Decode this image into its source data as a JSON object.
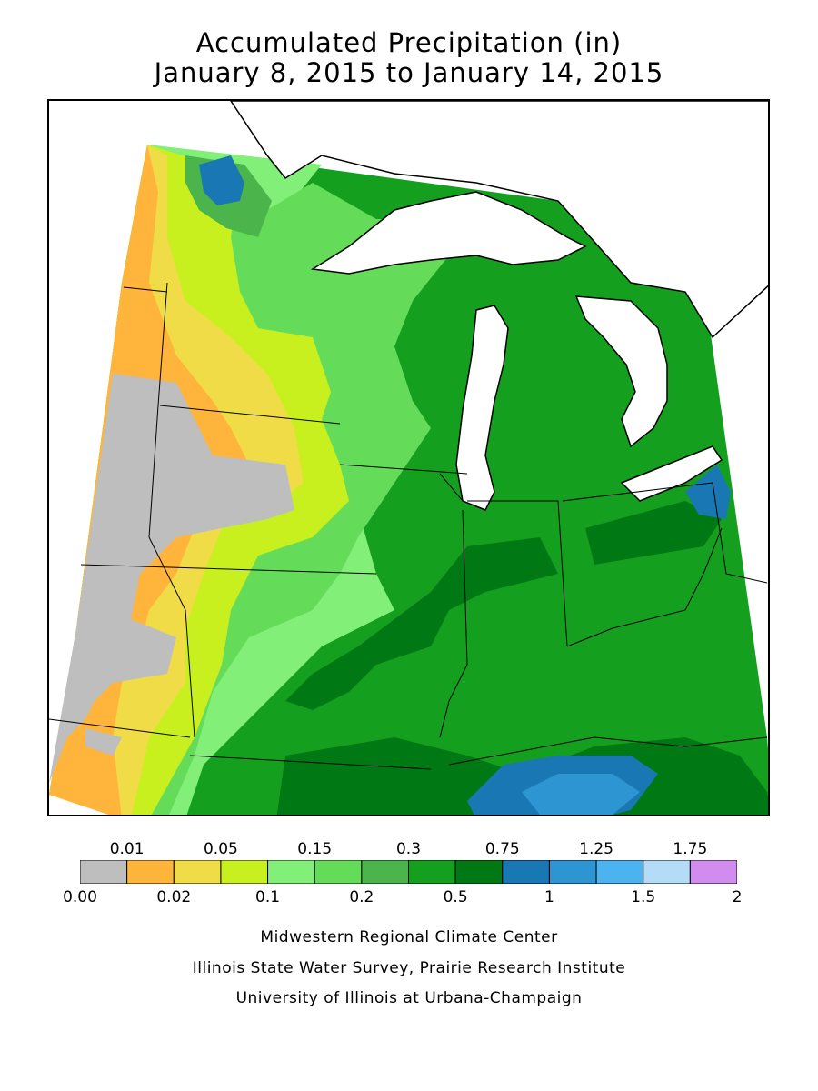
{
  "title": {
    "line1": "Accumulated Precipitation (in)",
    "line2": "January 8, 2015 to January 14, 2015"
  },
  "legend": {
    "upper_labels": [
      "0.01",
      "0.05",
      "0.15",
      "0.3",
      "0.75",
      "1.25",
      "1.75"
    ],
    "lower_labels": [
      "0.00",
      "0.02",
      "0.1",
      "0.2",
      "0.5",
      "1",
      "1.5",
      "2"
    ],
    "colors": [
      "#bebebe",
      "#ffb43c",
      "#f0dc46",
      "#c8f01e",
      "#82f078",
      "#64dc5a",
      "#4bb44b",
      "#14a01e",
      "#007814",
      "#1978b4",
      "#2d96d2",
      "#4bb4f0",
      "#b4dcf8",
      "#d28cf0"
    ]
  },
  "map_colors": {
    "none": "#bebebe",
    "trace": "#ffb43c",
    "p02": "#f0dc46",
    "p05": "#c8f01e",
    "p10": "#82f078",
    "p15": "#64dc5a",
    "p20": "#4bb44b",
    "p30": "#14a01e",
    "p50": "#007814",
    "p75": "#1978b4",
    "p100": "#2d96d2",
    "p125": "#4bb4f0",
    "water": "#ffffff"
  },
  "credits": [
    "Midwestern Regional Climate Center",
    "Illinois State Water Survey, Prairie Research Institute",
    "University of Illinois at Urbana-Champaign"
  ]
}
